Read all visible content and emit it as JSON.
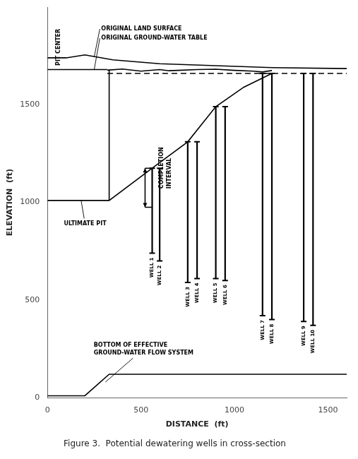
{
  "chart_data": {
    "type": "line",
    "title": "Figure 3.  Potential dewatering wells in cross-section",
    "xlabel": "DISTANCE  (ft)",
    "ylabel": "ELEVATION  (ft)",
    "xlim": [
      0,
      1600
    ],
    "ylim": [
      0,
      2000
    ],
    "xticks": [
      0,
      500,
      1000,
      1500
    ],
    "yticks": [
      0,
      500,
      1000,
      1500
    ],
    "grid": false,
    "series": [
      {
        "color": "#000000",
        "line_style": "solid",
        "x": [
          0,
          100,
          200,
          350,
          600,
          900,
          1200,
          1600
        ],
        "values": [
          1740,
          1740,
          1755,
          1730,
          1710,
          1700,
          1690,
          1685
        ]
      },
      {
        "color": "#000000",
        "line_style": "solid",
        "x": [
          0,
          320
        ],
        "values": [
          1680,
          1680
        ]
      },
      {
        "color": "#000000",
        "line_style": "solid",
        "x": [
          320,
          400,
          500,
          600,
          650,
          700,
          800,
          900,
          1000,
          1100,
          1150,
          1200
        ],
        "values": [
          1677,
          1683,
          1672,
          1680,
          1674,
          1676,
          1680,
          1682,
          1676,
          1672,
          1668,
          1675
        ]
      },
      {
        "color": "#000000",
        "line_style": "dashed",
        "x": [
          320,
          1600
        ],
        "values": [
          1660,
          1660
        ]
      },
      {
        "color": "#000000",
        "line_style": "solid",
        "x": [
          0,
          330,
          560
        ],
        "values": [
          1010,
          1010,
          1175
        ]
      },
      {
        "color": "#000000",
        "line_style": "solid",
        "x": [
          330,
          330
        ],
        "values": [
          1010,
          1680
        ]
      },
      {
        "color": "#000000",
        "line_style": "solid",
        "x": [
          560,
          750,
          900,
          1050,
          1200
        ],
        "values": [
          1175,
          1310,
          1490,
          1590,
          1660
        ]
      },
      {
        "color": "#000000",
        "line_style": "solid",
        "x": [
          0,
          200,
          330,
          1600
        ],
        "values": [
          10,
          10,
          120,
          120
        ]
      },
      {
        "name": "WELL 1",
        "color": "#000000",
        "line_style": "solid",
        "marker": "line",
        "x": [
          560,
          560
        ],
        "values": [
          1175,
          740
        ]
      },
      {
        "name": "WELL 2",
        "color": "#000000",
        "line_style": "solid",
        "marker": "line",
        "x": [
          600,
          600
        ],
        "values": [
          1175,
          700
        ]
      },
      {
        "name": "WELL 3",
        "color": "#000000",
        "line_style": "solid",
        "marker": "line",
        "x": [
          750,
          750
        ],
        "values": [
          1310,
          590
        ]
      },
      {
        "name": "WELL 4",
        "color": "#000000",
        "line_style": "solid",
        "marker": "line",
        "x": [
          800,
          800
        ],
        "values": [
          1310,
          610
        ]
      },
      {
        "name": "WELL 5",
        "color": "#000000",
        "line_style": "solid",
        "marker": "line",
        "x": [
          900,
          900
        ],
        "values": [
          1490,
          610
        ]
      },
      {
        "name": "WELL 6",
        "color": "#000000",
        "line_style": "solid",
        "marker": "line",
        "x": [
          950,
          950
        ],
        "values": [
          1490,
          600
        ]
      },
      {
        "name": "WELL 7",
        "color": "#000000",
        "line_style": "solid",
        "marker": "line",
        "x": [
          1150,
          1150
        ],
        "values": [
          1660,
          420
        ]
      },
      {
        "name": "WELL 8",
        "color": "#000000",
        "line_style": "solid",
        "marker": "line",
        "x": [
          1200,
          1200
        ],
        "values": [
          1660,
          400
        ]
      },
      {
        "name": "WELL 9",
        "color": "#000000",
        "line_style": "solid",
        "marker": "line",
        "x": [
          1370,
          1370
        ],
        "values": [
          1660,
          390
        ]
      },
      {
        "name": "WELL 10",
        "color": "#000000",
        "line_style": "solid",
        "marker": "line",
        "x": [
          1420,
          1420
        ],
        "values": [
          1660,
          370
        ]
      },
      {
        "color": "#000000",
        "line_style": "solid",
        "x": [
          522,
          560
        ],
        "values": [
          1175,
          1175
        ]
      },
      {
        "color": "#000000",
        "line_style": "solid",
        "x": [
          522,
          560
        ],
        "values": [
          975,
          975
        ]
      },
      {
        "color": "#000000",
        "line_style": "solid",
        "marker": "arrow",
        "x": [
          522,
          522
        ],
        "values": [
          1175,
          975
        ]
      }
    ],
    "annotations": [
      {
        "text": "ORIGINAL LAND SURFACE",
        "x": 280,
        "y": 1870,
        "target": [
          250,
          1745
        ]
      },
      {
        "text": "ORIGINAL GROUND-WATER TABLE",
        "x": 280,
        "y": 1840,
        "target": [
          250,
          1680
        ]
      },
      {
        "text": "ULTIMATE PIT",
        "x": 80,
        "y": 890,
        "target": [
          180,
          1010
        ]
      },
      {
        "text": "BOTTOM OF EFFECTIVE\nGROUND-WATER FLOW SYSTEM",
        "x": 240,
        "y": 250,
        "target": [
          310,
          80
        ]
      },
      {
        "text": "COMPLETION\nINTERVAL",
        "x": 630,
        "y": 1070
      },
      {
        "text": "PIT CENTER",
        "x": 60,
        "y": 1700
      }
    ]
  }
}
